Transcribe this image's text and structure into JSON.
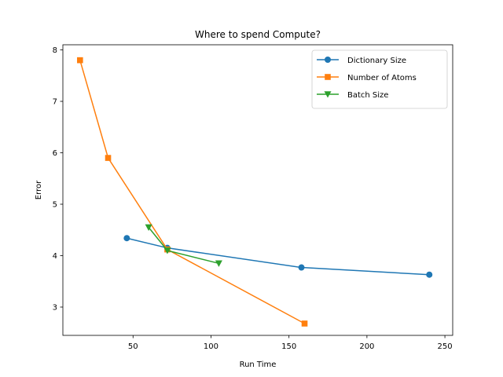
{
  "chart_data": {
    "type": "line",
    "title": "Where to spend Compute?",
    "xlabel": "Run Time",
    "ylabel": "Error",
    "xlim": [
      5,
      255
    ],
    "ylim": [
      2.45,
      8.1
    ],
    "xticks": [
      50,
      100,
      150,
      200,
      250
    ],
    "yticks": [
      3,
      4,
      5,
      6,
      7,
      8
    ],
    "grid": false,
    "legend_position": "top-right",
    "series": [
      {
        "name": "Dictionary Size",
        "color": "#1f77b4",
        "marker": "circle",
        "x": [
          46,
          72,
          158,
          240
        ],
        "y": [
          4.34,
          4.15,
          3.77,
          3.63
        ]
      },
      {
        "name": "Number of Atoms",
        "color": "#ff7f0e",
        "marker": "square",
        "x": [
          16,
          34,
          72,
          160
        ],
        "y": [
          7.8,
          5.9,
          4.12,
          2.68
        ]
      },
      {
        "name": "Batch Size",
        "color": "#2ca02c",
        "marker": "triangle-down",
        "x": [
          60,
          72,
          105
        ],
        "y": [
          4.55,
          4.1,
          3.85
        ]
      }
    ]
  }
}
